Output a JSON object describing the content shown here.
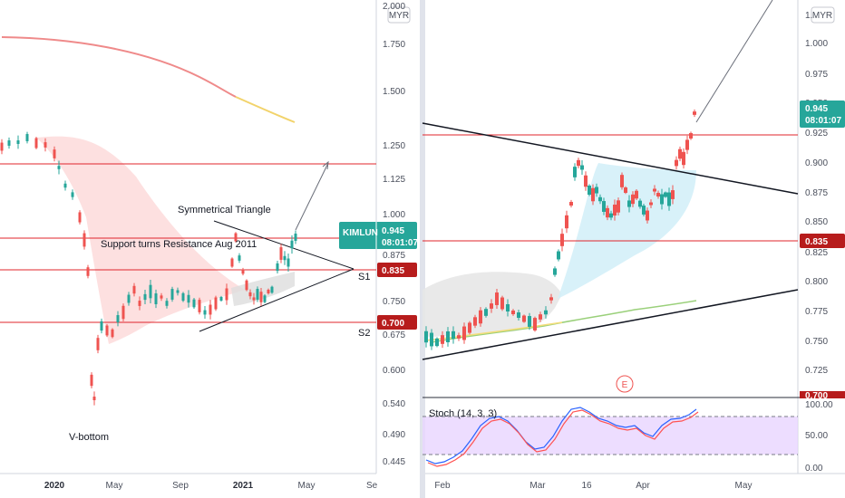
{
  "currency": "MYR",
  "colors": {
    "up": "#26a69a",
    "down": "#ef5350",
    "hline": "#e0252b",
    "trend": "#131722",
    "price_tag": "#26a69a",
    "level_tag": "#b71c1c",
    "stoch_k": "#2962ff",
    "stoch_d": "#ff5252",
    "stoch_band": "#e1c8ff"
  },
  "left_panel": {
    "y_ticks": [
      "2.000",
      "1.750",
      "1.500",
      "1.250",
      "1.125",
      "1.000",
      "0.875",
      "0.750",
      "0.675",
      "0.600",
      "0.540",
      "0.490",
      "0.445"
    ],
    "x_ticks": [
      "2020",
      "May",
      "Sep",
      "2021",
      "May",
      "Se"
    ],
    "ticker_tag": "KIMLUN",
    "price_tag": "0.945",
    "countdown": "08:01:07",
    "level_tags": [
      "0.835",
      "0.700"
    ],
    "annotations": {
      "triangle": "Symmetrical Triangle",
      "support": "Support turns Resistance Aug 2011",
      "vbottom": "V-bottom",
      "s1": "S1",
      "s2": "S2"
    }
  },
  "right_panel": {
    "y_ticks": [
      "1.",
      "1.000",
      "0.975",
      "0.950",
      "0.925",
      "0.900",
      "0.875",
      "0.850",
      "0.825",
      "0.800",
      "0.775",
      "0.750",
      "0.725",
      "0.700"
    ],
    "x_ticks": [
      "Feb",
      "Mar",
      "16",
      "Apr",
      "May"
    ],
    "price_tag": "0.945",
    "countdown": "08:01:07",
    "level_tag": "0.835",
    "earnings_marker": "E",
    "stoch": {
      "label": "Stoch (14, 3, 3)",
      "y_ticks": [
        "100.00",
        "50.00",
        "0.00"
      ]
    }
  },
  "chart_data": [
    {
      "type": "candlestick",
      "panel": "left",
      "x_ticks": [
        "2020",
        "May",
        "Sep",
        "2021",
        "May",
        "Se"
      ],
      "y_scale": "log",
      "ylim": [
        0.42,
        2.05
      ],
      "horizontal_levels": [
        1.18,
        0.945,
        0.835,
        0.7
      ],
      "annotations": [
        "Symmetrical Triangle",
        "Support turns Resistance Aug 2011",
        "V-bottom",
        "S1",
        "S2"
      ],
      "last_price": 0.945
    },
    {
      "type": "candlestick",
      "panel": "right",
      "x_ticks": [
        "Feb",
        "Mar",
        "16",
        "Apr",
        "May"
      ],
      "ylim": [
        0.7,
        1.03
      ],
      "horizontal_levels": [
        0.92,
        0.835
      ],
      "last_price": 0.945,
      "indicator": {
        "name": "Stoch (14, 3, 3)",
        "ylim": [
          0,
          100
        ],
        "bands": [
          20,
          80
        ]
      }
    }
  ]
}
